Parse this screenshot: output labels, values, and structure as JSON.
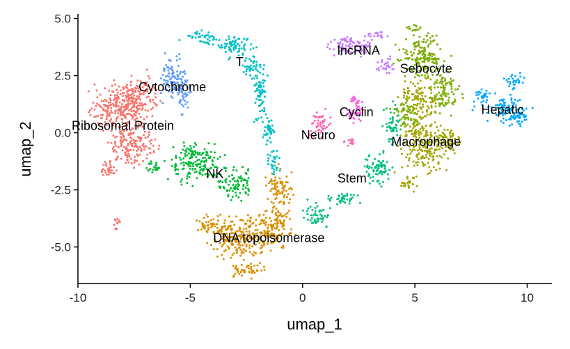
{
  "chart_data": {
    "type": "scatter",
    "xlabel": "umap_1",
    "ylabel": "umap_2",
    "xlim": [
      -10,
      11.1
    ],
    "ylim": [
      -6.6,
      5.2
    ],
    "x_ticks": [
      -10,
      -5,
      0,
      5,
      10
    ],
    "x_tick_labels": [
      "-10",
      "-5",
      "0",
      "5",
      "10"
    ],
    "y_ticks": [
      5,
      2.5,
      0,
      -2.5,
      -5
    ],
    "y_tick_labels": [
      "5.0",
      "2.5",
      "0.0",
      "-2.5",
      "-5.0"
    ],
    "grid": false,
    "legend": "none",
    "clusters": [
      {
        "name": "Ribosomal Protein",
        "color": "#F8766D",
        "label_at": [
          -8.0,
          0.3
        ],
        "points": [
          [
            -8.2,
            1.0,
            1.2,
            0.9
          ],
          [
            -7.3,
            1.5,
            0.9,
            0.9
          ],
          [
            -7.6,
            -0.5,
            1.0,
            0.9
          ],
          [
            -8.6,
            -1.6,
            0.4,
            0.4
          ],
          [
            -8.3,
            -4.0,
            0.15,
            0.3
          ]
        ]
      },
      {
        "name": "Cytochrome",
        "color": "#619CFF",
        "label_at": [
          -5.8,
          2.0
        ],
        "points": [
          [
            -5.8,
            2.4,
            0.6,
            0.9
          ],
          [
            -5.3,
            1.7,
            0.3,
            0.7
          ]
        ]
      },
      {
        "name": "T",
        "color": "#00BFC4",
        "label_at": [
          -2.8,
          3.1
        ],
        "points": [
          [
            -4.5,
            4.2,
            0.8,
            0.25
          ],
          [
            -3.2,
            3.8,
            0.9,
            0.4
          ],
          [
            -2.3,
            3.0,
            0.4,
            0.6
          ],
          [
            -1.9,
            1.6,
            0.3,
            1.2
          ],
          [
            -1.5,
            0.1,
            0.3,
            0.7
          ],
          [
            -1.3,
            -1.3,
            0.3,
            0.5
          ]
        ]
      },
      {
        "name": "NK",
        "color": "#00BA38",
        "label_at": [
          -3.9,
          -1.8
        ],
        "points": [
          [
            -4.8,
            -1.3,
            1.1,
            0.8
          ],
          [
            -3.0,
            -2.2,
            0.7,
            0.7
          ],
          [
            -6.6,
            -1.5,
            0.4,
            0.3
          ]
        ]
      },
      {
        "name": "DNA topoisomerase",
        "color": "#D89000",
        "label_at": [
          -1.5,
          -4.6
        ],
        "points": [
          [
            -2.7,
            -4.6,
            1.4,
            0.9
          ],
          [
            -1.2,
            -4.0,
            0.7,
            0.9
          ],
          [
            -1.0,
            -2.4,
            0.5,
            0.8
          ],
          [
            -4.3,
            -4.0,
            0.5,
            0.4
          ],
          [
            -2.4,
            -6.0,
            0.8,
            0.3
          ]
        ]
      },
      {
        "name": "lncRNA",
        "color": "#C77CFF",
        "label_at": [
          2.5,
          3.6
        ],
        "points": [
          [
            2.3,
            3.8,
            1.1,
            0.4
          ],
          [
            3.3,
            4.3,
            0.5,
            0.2
          ],
          [
            3.7,
            3.0,
            0.4,
            0.35
          ]
        ]
      },
      {
        "name": "Sebocyte",
        "color": "#7CAE00",
        "label_at": [
          5.5,
          2.8
        ],
        "points": [
          [
            5.3,
            3.4,
            0.9,
            1.0
          ],
          [
            6.3,
            1.8,
            0.6,
            0.9
          ],
          [
            4.6,
            0.8,
            0.6,
            0.6
          ],
          [
            4.9,
            4.6,
            0.25,
            0.2
          ]
        ]
      },
      {
        "name": "Cyclin",
        "color": "#F564E3",
        "label_at": [
          2.4,
          0.9
        ],
        "points": [
          [
            2.4,
            0.9,
            0.4,
            0.6
          ],
          [
            2.3,
            1.5,
            0.15,
            0.2
          ]
        ]
      },
      {
        "name": "Neuro",
        "color": "#FF64B0",
        "label_at": [
          0.7,
          -0.1
        ],
        "points": [
          [
            0.8,
            0.3,
            0.4,
            0.6
          ],
          [
            2.1,
            -0.4,
            0.3,
            0.2
          ]
        ]
      },
      {
        "name": "Hepatic",
        "color": "#00A9FF",
        "label_at": [
          8.9,
          1.0
        ],
        "points": [
          [
            9.0,
            1.0,
            1.0,
            0.5
          ],
          [
            9.4,
            2.2,
            0.4,
            0.4
          ],
          [
            8.1,
            1.6,
            0.4,
            0.35
          ],
          [
            9.7,
            0.6,
            0.4,
            0.3
          ]
        ]
      },
      {
        "name": "Macrophage",
        "color": "#A3A500",
        "label_at": [
          5.5,
          -0.4
        ],
        "points": [
          [
            5.4,
            -0.5,
            1.0,
            1.1
          ],
          [
            5.2,
            1.5,
            0.7,
            0.8
          ],
          [
            6.5,
            -0.3,
            0.5,
            0.5
          ],
          [
            4.7,
            -2.2,
            0.4,
            0.3
          ]
        ]
      },
      {
        "name": "Stem",
        "color": "#00BF7D",
        "label_at": [
          2.2,
          -2.0
        ],
        "points": [
          [
            3.3,
            -1.6,
            0.6,
            0.7
          ],
          [
            1.8,
            -2.9,
            0.7,
            0.3
          ],
          [
            0.6,
            -3.6,
            0.5,
            0.5
          ],
          [
            4.0,
            0.3,
            0.3,
            0.8
          ]
        ]
      }
    ]
  }
}
